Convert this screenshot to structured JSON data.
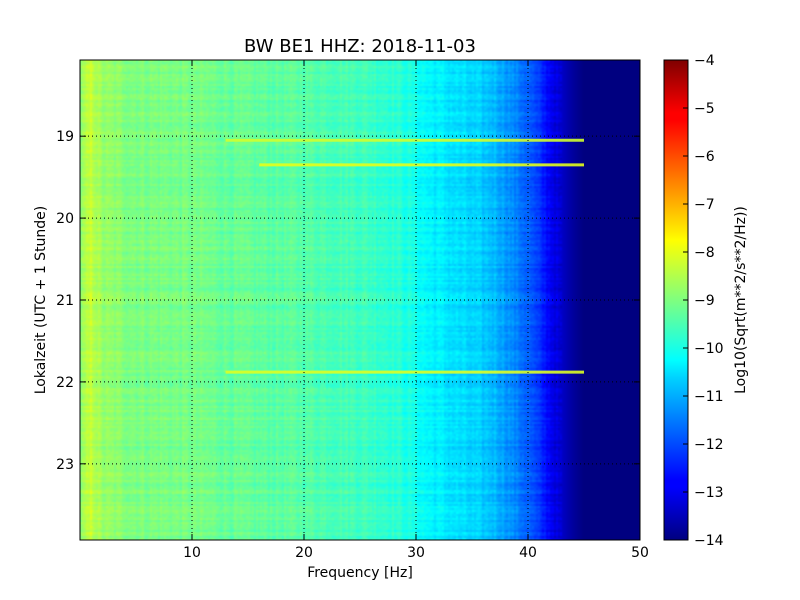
{
  "chart_data": {
    "type": "heatmap",
    "title": "BW BE1 HHZ: 2018-11-03",
    "xlabel": "Frequency [Hz]",
    "ylabel": "Lokalzeit (UTC + 1 Stunde)",
    "colorbar_label": "Log10(Sqrt(m**2/s**2/Hz))",
    "colormap": "jet",
    "xlim": [
      0,
      50
    ],
    "ylim": [
      18.07,
      23.93
    ],
    "y_inverted": true,
    "grid": true,
    "x_ticks": [
      10,
      20,
      30,
      40,
      50
    ],
    "x_tick_labels": [
      "10",
      "20",
      "30",
      "40",
      "50"
    ],
    "y_ticks": [
      19,
      20,
      21,
      22,
      23
    ],
    "y_tick_labels": [
      "19",
      "20",
      "21",
      "22",
      "23"
    ],
    "color_range": [
      -14,
      -4
    ],
    "colorbar_ticks": [
      -4,
      -5,
      -6,
      -7,
      -8,
      -9,
      -10,
      -11,
      -12,
      -13,
      -14
    ],
    "colorbar_tick_labels": [
      "−4",
      "−5",
      "−6",
      "−7",
      "−8",
      "−9",
      "−10",
      "−11",
      "−12",
      "−13",
      "−14"
    ],
    "frequency_profile": {
      "frequency_hz": [
        0,
        1,
        2,
        5,
        10,
        15,
        20,
        25,
        28,
        30,
        31,
        33,
        35,
        37,
        38,
        40,
        41,
        42,
        43,
        44,
        45,
        50
      ],
      "level": [
        -8.9,
        -8.3,
        -8.8,
        -9.0,
        -9.1,
        -9.3,
        -9.4,
        -9.6,
        -9.8,
        -10.1,
        -10.3,
        -10.5,
        -10.7,
        -10.9,
        -11.2,
        -11.8,
        -12.3,
        -12.8,
        -13.3,
        -13.7,
        -14.0,
        -14.0
      ]
    },
    "bright_lines": [
      {
        "time": 19.05,
        "from_hz": 13,
        "to_hz": 45,
        "level": -8.2
      },
      {
        "time": 19.35,
        "from_hz": 16,
        "to_hz": 45,
        "level": -8.0
      },
      {
        "time": 21.88,
        "from_hz": 13,
        "to_hz": 45,
        "level": -8.1
      }
    ]
  }
}
